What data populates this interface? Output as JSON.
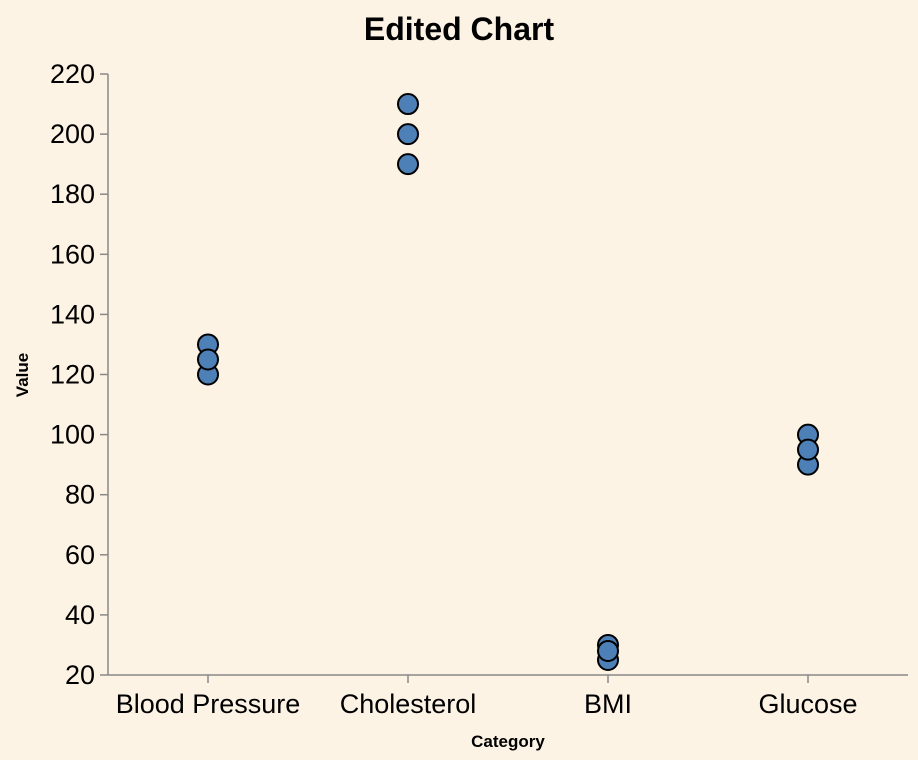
{
  "chart_data": {
    "type": "scatter",
    "title": "Edited Chart",
    "xlabel": "Category",
    "ylabel": "Value",
    "categories": [
      "Blood Pressure",
      "Cholesterol",
      "BMI",
      "Glucose"
    ],
    "ylim": [
      20,
      220
    ],
    "yticks": [
      20,
      40,
      60,
      80,
      100,
      120,
      140,
      160,
      180,
      200,
      220
    ],
    "grid": false,
    "point_color": "#4c80b7",
    "background": "#fdf3e5",
    "points": [
      {
        "category": "Blood Pressure",
        "value": 120
      },
      {
        "category": "Blood Pressure",
        "value": 130
      },
      {
        "category": "Blood Pressure",
        "value": 125
      },
      {
        "category": "Cholesterol",
        "value": 190
      },
      {
        "category": "Cholesterol",
        "value": 210
      },
      {
        "category": "Cholesterol",
        "value": 200
      },
      {
        "category": "BMI",
        "value": 25
      },
      {
        "category": "BMI",
        "value": 30
      },
      {
        "category": "BMI",
        "value": 28
      },
      {
        "category": "Glucose",
        "value": 90
      },
      {
        "category": "Glucose",
        "value": 100
      },
      {
        "category": "Glucose",
        "value": 95
      }
    ]
  }
}
